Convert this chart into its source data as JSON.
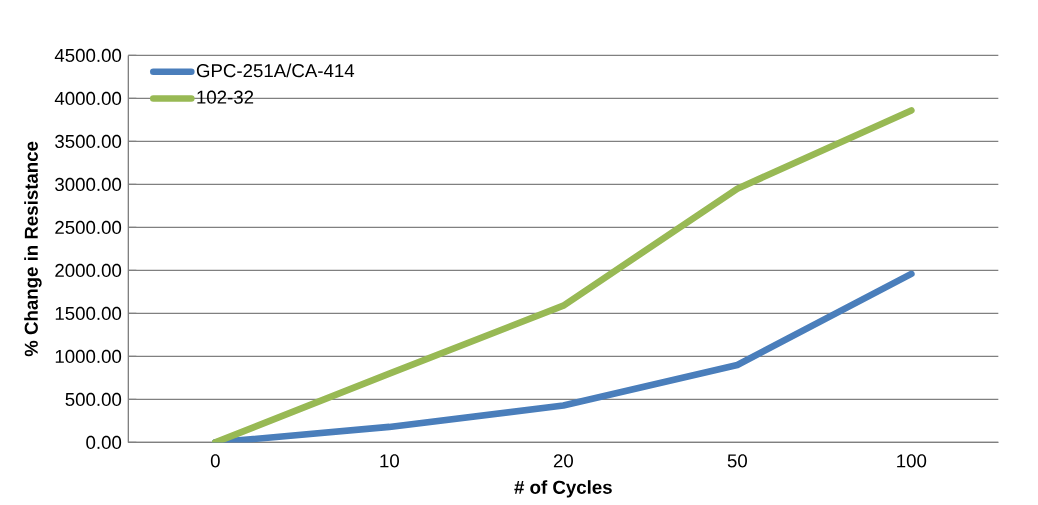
{
  "chart_data": {
    "type": "line",
    "xlabel": "# of Cycles",
    "ylabel": "% Change in Resistance",
    "categories": [
      "0",
      "10",
      "20",
      "50",
      "100"
    ],
    "series": [
      {
        "name": "GPC-251A/CA-414",
        "color": "#4a7ebb",
        "values": [
          0,
          180,
          430,
          900,
          1960
        ]
      },
      {
        "name": "102-32",
        "color": "#98b954",
        "values": [
          0,
          800,
          1590,
          2950,
          3860
        ]
      }
    ],
    "ylim": [
      0,
      4500
    ],
    "yticks": [
      {
        "value": 0,
        "label": "0.00"
      },
      {
        "value": 500,
        "label": "500.00"
      },
      {
        "value": 1000,
        "label": "1000.00"
      },
      {
        "value": 1500,
        "label": "1500.00"
      },
      {
        "value": 2000,
        "label": "2000.00"
      },
      {
        "value": 2500,
        "label": "2500.00"
      },
      {
        "value": 3000,
        "label": "3000.00"
      },
      {
        "value": 3500,
        "label": "3500.00"
      },
      {
        "value": 4000,
        "label": "4000.00"
      },
      {
        "value": 4500,
        "label": "4500.00"
      }
    ],
    "grid": "y",
    "legend": "top left",
    "marker": "none",
    "line_style": "solid"
  }
}
